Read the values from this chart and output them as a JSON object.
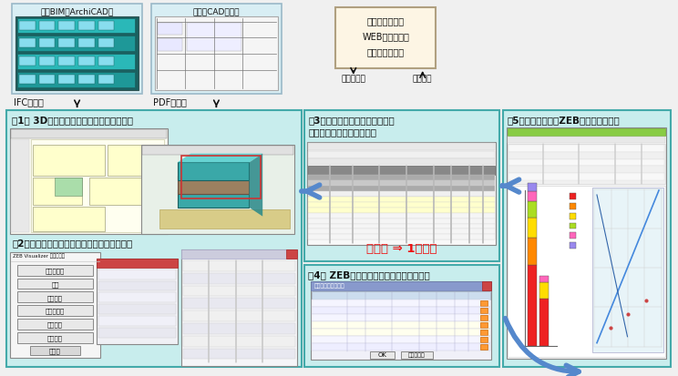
{
  "bg_color": "#f0f0f0",
  "light_cyan": "#c8eded",
  "box_bg": "#fef9f0",
  "arrow_color": "#5588cc",
  "red_text_color": "#ee1111",
  "black": "#111111",
  "title1": "＜1＞ 3Dモデラーによる迅速なモデリング",
  "title2": "＜2＞ライブラリデータに設計ノウハウを蓄積",
  "title3": "＜3＞計算入力データの自動生成\nにより大幅な作業時間短縮",
  "title4": "＜4＞ ZEB提案技術の省エネ効果算出可能",
  "title5": "＜5＞分かりやすいZEB提案資料を出力",
  "box_web_lines": [
    "省エネ基準計算",
    "WEBプログラム",
    "（標準入力法）"
  ],
  "label_ifc": "IFCデータ",
  "label_pdf": "PDFデータ",
  "label_input": "入力データ",
  "label_result": "計算結果",
  "caption_bim": "建築BIM（ArchiCAD）",
  "caption_cad": "平面図CADデータ",
  "red_label": "数週間 ⇒ 1日程度",
  "lib_buttons": [
    "建物材料等",
    "材質",
    "建材製品",
    "空・設備品",
    "空ガラス",
    "設計仕様"
  ],
  "lib_close": "閉じる"
}
